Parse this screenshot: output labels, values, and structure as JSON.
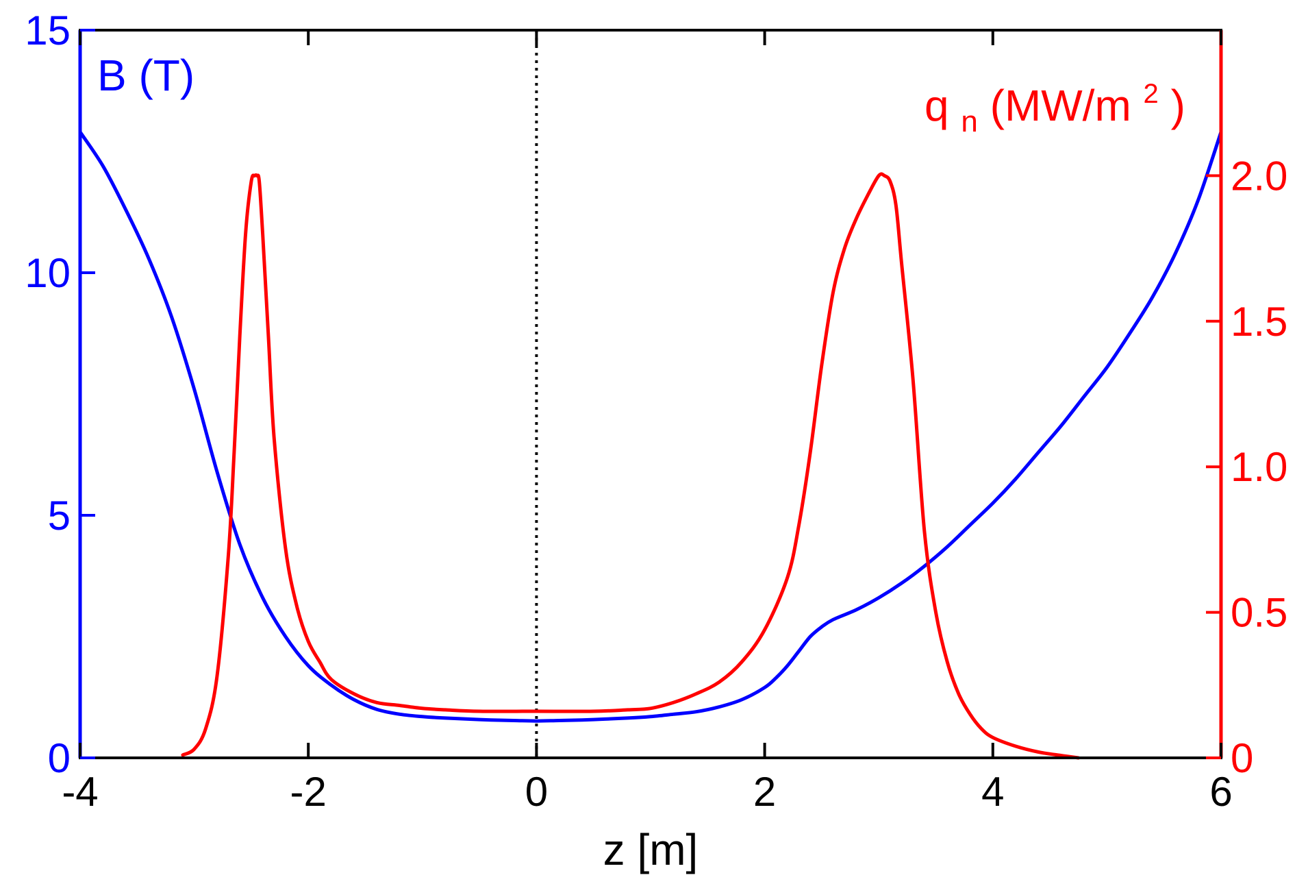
{
  "chart_data": {
    "type": "line",
    "xlabel": "z [m]",
    "xlim": [
      -4,
      6
    ],
    "x_ticks": [
      "-4",
      "-2",
      "0",
      "2",
      "4",
      "6"
    ],
    "left_axis": {
      "label_main": "B",
      "label_unit": "(T)",
      "ylim": [
        0,
        15
      ],
      "ticks": [
        "0",
        "5",
        "10",
        "15"
      ],
      "color": "#0000ff"
    },
    "right_axis": {
      "label_main": "q",
      "label_sub": "n",
      "label_unit_pre": "(MW/m",
      "label_sup": "2",
      "label_unit_post": ")",
      "ylim": [
        0,
        2.5
      ],
      "ticks": [
        "0",
        "0.5",
        "1.0",
        "1.5",
        "2.0"
      ],
      "color": "#ff0000"
    },
    "reference_line": {
      "x": 0,
      "style": "dotted",
      "color": "#000000"
    },
    "series": [
      {
        "name": "B(T)",
        "axis": "left",
        "color": "#0000ff",
        "x": [
          -4.0,
          -3.8,
          -3.6,
          -3.4,
          -3.2,
          -3.0,
          -2.8,
          -2.6,
          -2.4,
          -2.2,
          -2.0,
          -1.8,
          -1.6,
          -1.4,
          -1.2,
          -1.0,
          -0.8,
          -0.6,
          -0.4,
          -0.2,
          0.0,
          0.2,
          0.4,
          0.6,
          0.8,
          1.0,
          1.2,
          1.4,
          1.6,
          1.8,
          2.0,
          2.1,
          2.2,
          2.3,
          2.4,
          2.5,
          2.6,
          2.8,
          3.0,
          3.2,
          3.4,
          3.6,
          3.8,
          4.0,
          4.2,
          4.4,
          4.6,
          4.8,
          5.0,
          5.2,
          5.4,
          5.6,
          5.8,
          6.0
        ],
        "values": [
          12.9,
          12.2,
          11.3,
          10.3,
          9.1,
          7.6,
          5.9,
          4.4,
          3.3,
          2.5,
          1.9,
          1.5,
          1.2,
          1.0,
          0.9,
          0.85,
          0.82,
          0.8,
          0.78,
          0.77,
          0.76,
          0.77,
          0.78,
          0.8,
          0.82,
          0.85,
          0.9,
          0.95,
          1.05,
          1.2,
          1.45,
          1.65,
          1.9,
          2.2,
          2.5,
          2.7,
          2.85,
          3.05,
          3.3,
          3.6,
          3.95,
          4.35,
          4.8,
          5.25,
          5.75,
          6.3,
          6.85,
          7.45,
          8.05,
          8.75,
          9.5,
          10.4,
          11.5,
          12.9
        ]
      },
      {
        "name": "q_n(MW/m^2)",
        "axis": "right",
        "color": "#ff0000",
        "x": [
          -3.1,
          -3.0,
          -2.9,
          -2.8,
          -2.7,
          -2.65,
          -2.6,
          -2.55,
          -2.5,
          -2.47,
          -2.45,
          -2.43,
          -2.4,
          -2.35,
          -2.3,
          -2.2,
          -2.1,
          -2.0,
          -1.9,
          -1.8,
          -1.6,
          -1.4,
          -1.2,
          -1.0,
          -0.8,
          -0.5,
          0.0,
          0.5,
          0.8,
          1.0,
          1.2,
          1.4,
          1.6,
          1.8,
          2.0,
          2.2,
          2.3,
          2.4,
          2.5,
          2.6,
          2.7,
          2.8,
          2.9,
          3.0,
          3.05,
          3.1,
          3.15,
          3.2,
          3.3,
          3.4,
          3.5,
          3.6,
          3.7,
          3.8,
          3.9,
          4.0,
          4.2,
          4.4,
          4.6,
          4.75
        ],
        "values": [
          0.01,
          0.03,
          0.1,
          0.28,
          0.7,
          1.05,
          1.45,
          1.8,
          1.98,
          2.0,
          2.0,
          1.98,
          1.8,
          1.45,
          1.1,
          0.72,
          0.52,
          0.4,
          0.33,
          0.27,
          0.22,
          0.19,
          0.18,
          0.17,
          0.165,
          0.16,
          0.16,
          0.16,
          0.165,
          0.17,
          0.19,
          0.22,
          0.26,
          0.33,
          0.44,
          0.62,
          0.8,
          1.05,
          1.35,
          1.6,
          1.75,
          1.85,
          1.93,
          2.0,
          2.0,
          1.98,
          1.9,
          1.7,
          1.3,
          0.78,
          0.5,
          0.33,
          0.22,
          0.15,
          0.1,
          0.07,
          0.04,
          0.02,
          0.008,
          0.0
        ]
      }
    ]
  }
}
